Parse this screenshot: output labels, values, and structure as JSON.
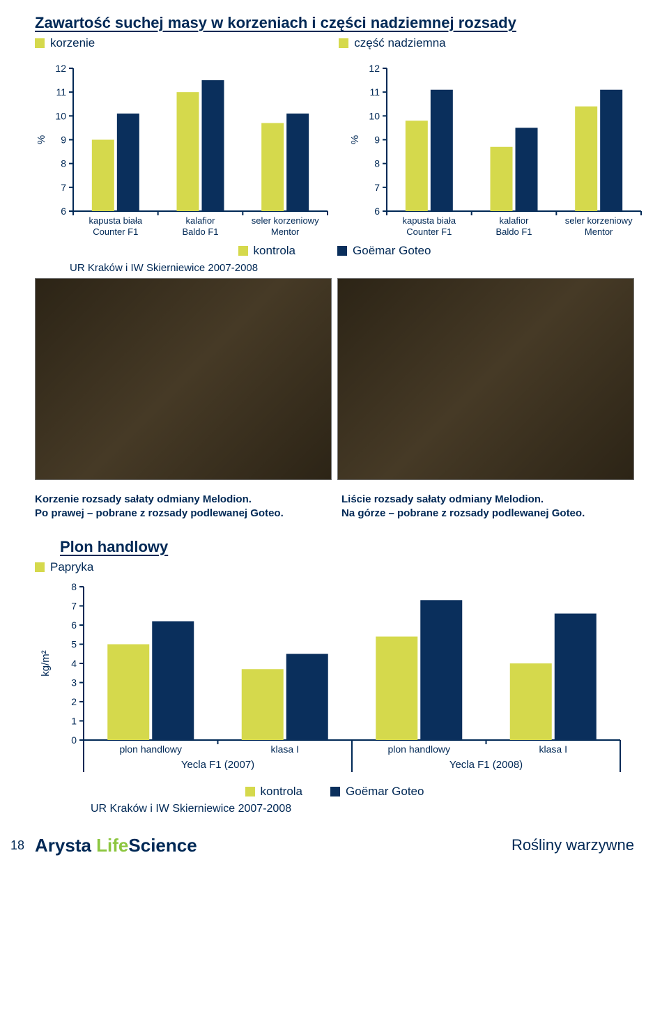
{
  "colors": {
    "dark": "#0a2f5c",
    "yellow": "#d5d94c",
    "axis": "#002855",
    "tick": "#002855",
    "white": "#ffffff"
  },
  "section1": {
    "title": "Zawartość suchej masy w korzeniach i części nadziemnej rozsady",
    "legend_left": "korzenie",
    "legend_right": "część nadziemna",
    "chart_left": {
      "type": "bar",
      "ylabel": "%",
      "ylim": [
        6,
        12
      ],
      "ytick_step": 1,
      "categories": [
        {
          "line1": "kapusta biała",
          "line2": "Counter F1"
        },
        {
          "line1": "kalafior",
          "line2": "Baldo F1"
        },
        {
          "line1": "seler korzeniowy",
          "line2": "Mentor"
        }
      ],
      "series": [
        {
          "name": "kontrola",
          "color": "#d5d94c",
          "values": [
            9.0,
            11.0,
            9.7
          ]
        },
        {
          "name": "Goëmar Goteo",
          "color": "#0a2f5c",
          "values": [
            10.1,
            11.5,
            10.1
          ]
        }
      ]
    },
    "chart_right": {
      "type": "bar",
      "ylabel": "%",
      "ylim": [
        6,
        12
      ],
      "ytick_step": 1,
      "categories": [
        {
          "line1": "kapusta biała",
          "line2": "Counter F1"
        },
        {
          "line1": "kalafior",
          "line2": "Baldo F1"
        },
        {
          "line1": "seler korzeniowy",
          "line2": "Mentor"
        }
      ],
      "series": [
        {
          "name": "kontrola",
          "color": "#d5d94c",
          "values": [
            9.8,
            8.7,
            10.4
          ]
        },
        {
          "name": "Goëmar Goteo",
          "color": "#0a2f5c",
          "values": [
            11.1,
            9.5,
            11.1
          ]
        }
      ]
    },
    "mid_legend": {
      "left": "kontrola",
      "right": "Goëmar Goteo"
    },
    "source": "UR Kraków i IW Skierniewice 2007-2008"
  },
  "captions": {
    "left_line1": "Korzenie rozsady sałaty odmiany Melodion.",
    "left_line2": "Po prawej – pobrane z rozsady podlewanej Goteo.",
    "right_line1": "Liście rozsady sałaty odmiany Melodion.",
    "right_line2": "Na górze – pobrane z rozsady podlewanej Goteo."
  },
  "section2": {
    "title": "Plon handlowy",
    "subtitle": "Papryka",
    "chart": {
      "type": "bar",
      "ylabel": "kg/m²",
      "ylim": [
        0,
        8
      ],
      "ytick_step": 1,
      "groups": [
        {
          "label": "Yecla F1 (2007)",
          "sublabels": [
            "plon handlowy",
            "klasa I"
          ]
        },
        {
          "label": "Yecla F1 (2008)",
          "sublabels": [
            "plon handlowy",
            "klasa I"
          ]
        }
      ],
      "series": [
        {
          "name": "kontrola",
          "color": "#d5d94c",
          "values": [
            5.0,
            3.7,
            5.4,
            4.0
          ]
        },
        {
          "name": "Goëmar Goteo",
          "color": "#0a2f5c",
          "values": [
            6.2,
            4.5,
            7.3,
            6.6
          ]
        }
      ]
    },
    "legend": {
      "left": "kontrola",
      "right": "Goëmar Goteo"
    },
    "source": "UR Kraków i IW Skierniewice 2007-2008"
  },
  "footer": {
    "page": "18",
    "brand_a": "Arysta ",
    "brand_b": "Life",
    "brand_c": "Science",
    "right": "Rośliny warzywne"
  }
}
